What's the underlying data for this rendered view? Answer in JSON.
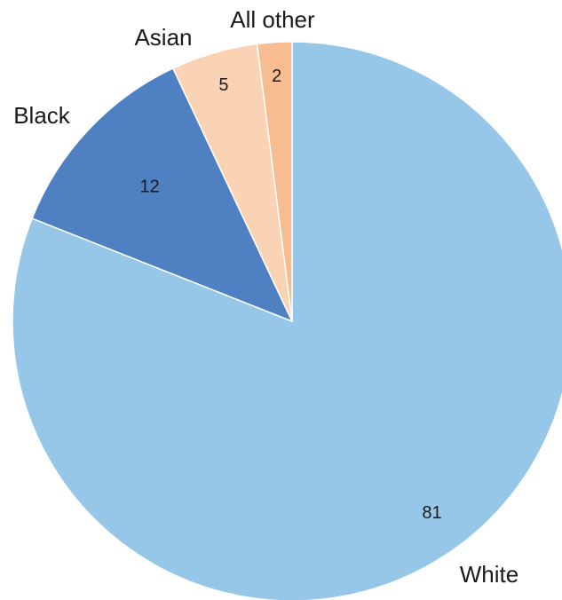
{
  "chart_data": {
    "type": "pie",
    "categories": [
      "White",
      "Black",
      "Asian",
      "All other"
    ],
    "values": [
      81,
      12,
      5,
      2
    ],
    "colors": [
      "#96c7e8",
      "#4f81c2",
      "#fad3b4",
      "#f7bc8f"
    ],
    "start_angle": "12 o'clock",
    "direction": "clockwise",
    "data_labels": [
      "81",
      "12",
      "5",
      "2"
    ]
  }
}
